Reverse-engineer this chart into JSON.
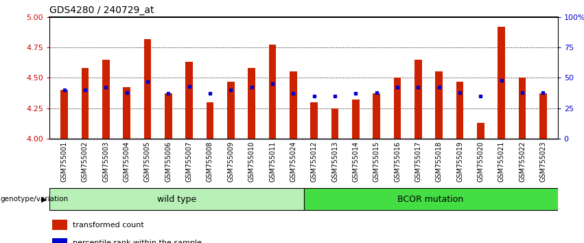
{
  "title": "GDS4280 / 240729_at",
  "samples": [
    "GSM755001",
    "GSM755002",
    "GSM755003",
    "GSM755004",
    "GSM755005",
    "GSM755006",
    "GSM755007",
    "GSM755008",
    "GSM755009",
    "GSM755010",
    "GSM755011",
    "GSM755024",
    "GSM755012",
    "GSM755013",
    "GSM755014",
    "GSM755015",
    "GSM755016",
    "GSM755017",
    "GSM755018",
    "GSM755019",
    "GSM755020",
    "GSM755021",
    "GSM755022",
    "GSM755023"
  ],
  "red_values": [
    4.4,
    4.58,
    4.65,
    4.42,
    4.82,
    4.37,
    4.63,
    4.3,
    4.47,
    4.58,
    4.77,
    4.55,
    4.3,
    4.25,
    4.32,
    4.37,
    4.5,
    4.65,
    4.55,
    4.47,
    4.13,
    4.92,
    4.5,
    4.37
  ],
  "blue_values": [
    4.4,
    4.4,
    4.42,
    4.38,
    4.47,
    4.37,
    4.43,
    4.37,
    4.4,
    4.42,
    4.45,
    4.37,
    4.35,
    4.35,
    4.37,
    4.38,
    4.42,
    4.42,
    4.42,
    4.38,
    4.35,
    4.48,
    4.38,
    4.38
  ],
  "wild_type_count": 12,
  "bcor_count": 12,
  "ylim_left": [
    4.0,
    5.0
  ],
  "yticks_left": [
    4.0,
    4.25,
    4.5,
    4.75,
    5.0
  ],
  "yticks_right": [
    0,
    25,
    50,
    75,
    100
  ],
  "ylabel_left_color": "#cc0000",
  "ylabel_right_color": "#0000cc",
  "bar_color": "#cc2200",
  "blue_marker_color": "#0000cc",
  "wild_type_color": "#b8f0b8",
  "bcor_color": "#44dd44",
  "background_color": "#ffffff",
  "grid_color": "#000000",
  "tick_label_bg": "#d0d0d0",
  "label_fontsize": 7,
  "title_fontsize": 10
}
